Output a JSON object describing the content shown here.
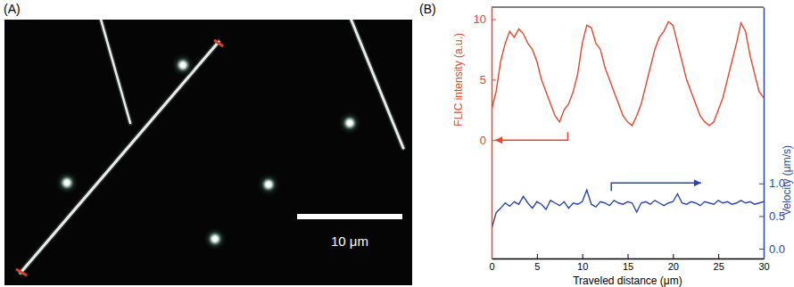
{
  "image_panel": {
    "panel_label": "(A)",
    "scale_bar_label": "10 μm"
  },
  "chart_data": {
    "type": "line",
    "panel_label": "(B)",
    "xlabel": "Traveled distance (μm)",
    "ylabel": "FLIC intensity (a.u.)",
    "y2label": "Velocity (μm/s)",
    "x": [
      0,
      0.5,
      1,
      1.5,
      2,
      2.5,
      3,
      3.5,
      4,
      4.5,
      5,
      5.5,
      6,
      6.5,
      7,
      7.5,
      8,
      8.5,
      9,
      9.5,
      10,
      10.5,
      11,
      11.5,
      12,
      12.5,
      13,
      13.5,
      14,
      14.5,
      15,
      15.5,
      16,
      16.5,
      17,
      17.5,
      18,
      18.5,
      19,
      19.5,
      20,
      20.5,
      21,
      21.5,
      22,
      22.5,
      23,
      23.5,
      24,
      24.5,
      25,
      25.5,
      26,
      26.5,
      27,
      27.5,
      28,
      28.5,
      29,
      29.5,
      30
    ],
    "xlim": [
      0,
      30
    ],
    "xticks": [
      0,
      5,
      10,
      15,
      20,
      25,
      30
    ],
    "ylim": [
      -9.8,
      11
    ],
    "yticks": [
      0,
      5,
      10
    ],
    "y2lim": [
      -0.15,
      3.7
    ],
    "y2ticks": [
      {
        "value": 0,
        "label": "0.0"
      },
      {
        "value": 0.5,
        "label": "0.5"
      },
      {
        "value": 1,
        "label": "1.0"
      }
    ],
    "series": [
      {
        "color": "#e8452c",
        "axis": "y",
        "values": [
          2.5,
          4,
          6.5,
          8,
          9,
          8.5,
          9.2,
          8.8,
          8,
          7.5,
          6.5,
          5,
          4,
          3,
          2,
          1.5,
          2.5,
          3,
          4,
          5.5,
          8,
          9.5,
          9.3,
          8,
          7.5,
          6,
          5,
          4,
          3,
          2,
          1.5,
          1.2,
          2,
          3,
          4.5,
          6,
          7.5,
          8.5,
          9,
          9.8,
          9.5,
          8,
          6.5,
          5,
          4,
          3,
          2,
          1.5,
          1.2,
          1.5,
          2.5,
          3.5,
          5,
          6.5,
          8,
          9.7,
          9,
          7,
          5.5,
          4,
          3.5
        ]
      },
      {
        "color": "#2b47a8",
        "axis": "y2",
        "values": [
          0.3,
          0.55,
          0.62,
          0.7,
          0.65,
          0.72,
          0.68,
          0.8,
          0.7,
          0.62,
          0.72,
          0.68,
          0.6,
          0.74,
          0.7,
          0.66,
          0.72,
          0.62,
          0.7,
          0.68,
          0.72,
          0.9,
          0.68,
          0.64,
          0.72,
          0.7,
          0.66,
          0.74,
          0.7,
          0.68,
          0.72,
          0.7,
          0.56,
          0.7,
          0.72,
          0.68,
          0.74,
          0.7,
          0.66,
          0.7,
          0.72,
          0.84,
          0.7,
          0.68,
          0.72,
          0.7,
          0.66,
          0.72,
          0.7,
          0.68,
          0.74,
          0.7,
          0.72,
          0.68,
          0.7,
          0.74,
          0.7,
          0.72,
          0.68,
          0.7,
          0.72
        ]
      }
    ]
  }
}
